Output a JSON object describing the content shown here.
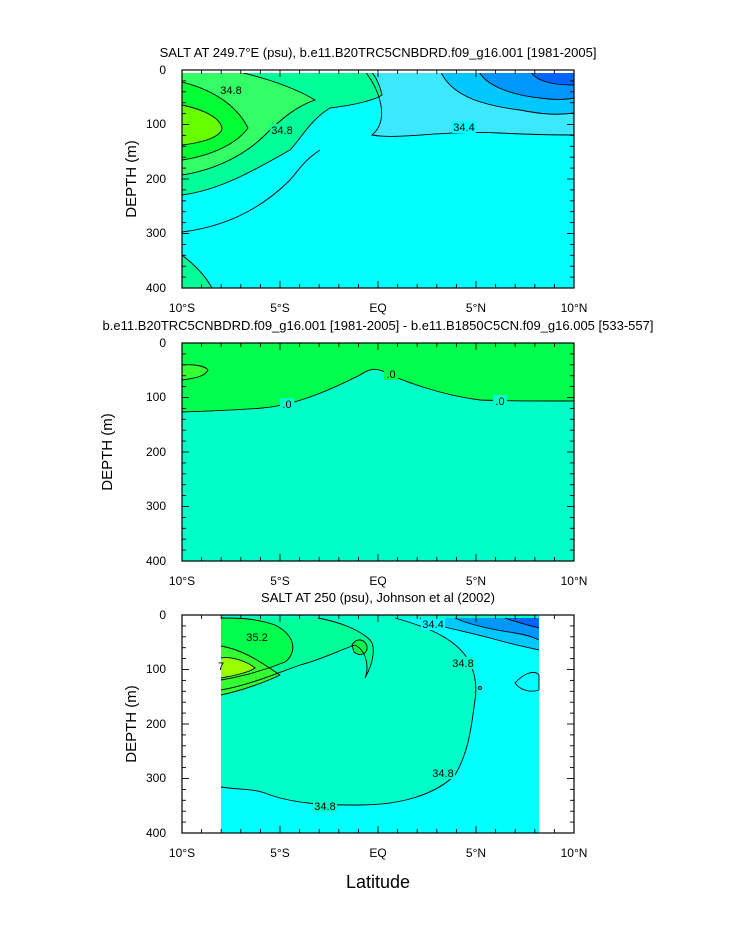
{
  "figure": {
    "xlabel": "Latitude"
  },
  "chart_data": [
    {
      "type": "contour",
      "title": "SALT AT 249.7°E (psu), b.e11.B20TRC5CNBDRD.f09_g16.001 [1981-2005]",
      "ylabel": "DEPTH (m)",
      "xlim": [
        -10,
        10
      ],
      "ylim": [
        400,
        0
      ],
      "x_tick_labels": [
        "10°S",
        "5°S",
        "EQ",
        "5°N",
        "10°N"
      ],
      "y_tick_labels": [
        "0",
        "100",
        "200",
        "300",
        "400"
      ],
      "contour_labels": [
        "34.8",
        "34.8",
        "34.4"
      ],
      "fill_colors": [
        "#00ffff",
        "#3de8ff",
        "#00ff99",
        "#33ff66",
        "#00ff33",
        "#66ff00",
        "#00c8ff",
        "#0096ff",
        "#0064ff"
      ]
    },
    {
      "type": "contour",
      "title": "b.e11.B20TRC5CNBDRD.f09_g16.001 [1981-2005] - b.e11.B1850C5CN.f09_g16.005 [533-557]",
      "ylabel": "DEPTH (m)",
      "xlim": [
        -10,
        10
      ],
      "ylim": [
        400,
        0
      ],
      "x_tick_labels": [
        "10°S",
        "5°S",
        "EQ",
        "5°N",
        "10°N"
      ],
      "y_tick_labels": [
        "0",
        "100",
        "200",
        "300",
        "400"
      ],
      "contour_labels": [
        ".0",
        ".0",
        ".0"
      ],
      "fill_colors": [
        "#00ffc8",
        "#00ff4c",
        "#33ff33"
      ]
    },
    {
      "type": "contour",
      "title": "SALT AT 250 (psu), Johnson et al (2002)",
      "ylabel": "DEPTH (m)",
      "xlim": [
        -10,
        10
      ],
      "ylim": [
        400,
        0
      ],
      "data_extent_lat": [
        -8,
        8
      ],
      "x_tick_labels": [
        "10°S",
        "5°S",
        "EQ",
        "5°N",
        "10°N"
      ],
      "y_tick_labels": [
        "0",
        "100",
        "200",
        "300",
        "400"
      ],
      "contour_labels": [
        "35.2",
        "34.4",
        "34.8",
        "34.8",
        "34.8",
        "7"
      ],
      "fill_colors": [
        "#00ffff",
        "#00ffc8",
        "#00ff99",
        "#00ff4c",
        "#33ff33",
        "#99ff00",
        "#00c8ff",
        "#0096ff",
        "#0064ff"
      ]
    }
  ]
}
